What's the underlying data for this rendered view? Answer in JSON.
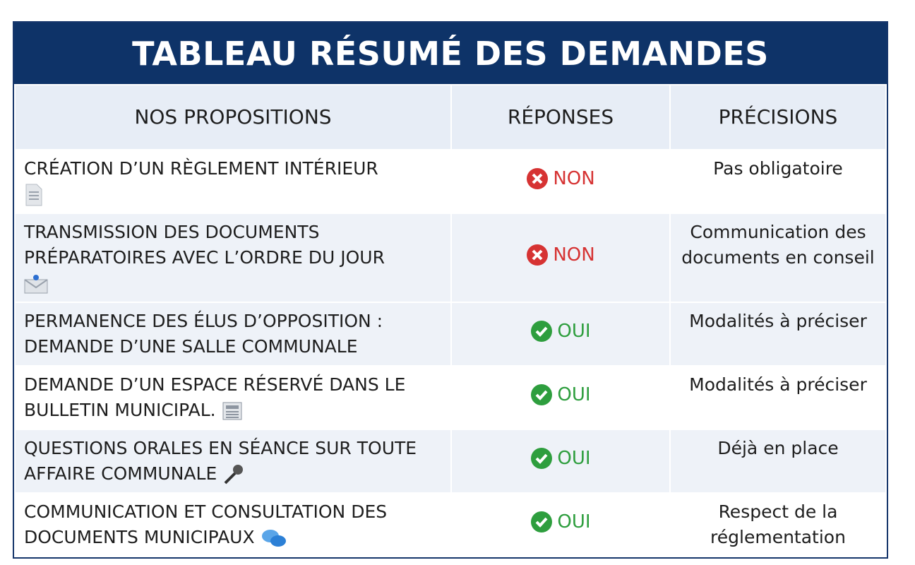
{
  "header": {
    "title": "TABLEAU RÉSUMÉ DES DEMANDES"
  },
  "table": {
    "columns": [
      "NOS PROPOSITIONS",
      "RÉPONSES",
      "PRÉCISIONS"
    ],
    "rows": [
      [
        "CRÉATION D’UN RÈGLEMENT INTÉRIEUR",
        "NON",
        "Pas obligatoire"
      ],
      [
        "TRANSMISSION DES DOCUMENTS PRÉPARATOIRES AVEC L’ORDRE DU JOUR",
        "NON",
        "Communication des documents en conseil"
      ],
      [
        "PERMANENCE DES ÉLUS D’OPPOSITION : DEMANDE D’UNE SALLE COMMUNALE",
        "OUI",
        "Modalités à préciser"
      ],
      [
        "DEMANDE D’UN ESPACE RÉSERVÉ DANS LE BULLETIN MUNICIPAL.",
        "OUI",
        "Modalités à préciser"
      ],
      [
        "QUESTIONS ORALES EN SÉANCE SUR TOUTE AFFAIRE COMMUNALE",
        "OUI",
        "Déjà en place"
      ],
      [
        "COMMUNICATION ET CONSULTATION DES DOCUMENTS MUNICIPAUX",
        "OUI",
        "Respect de la réglementation"
      ]
    ]
  }
}
